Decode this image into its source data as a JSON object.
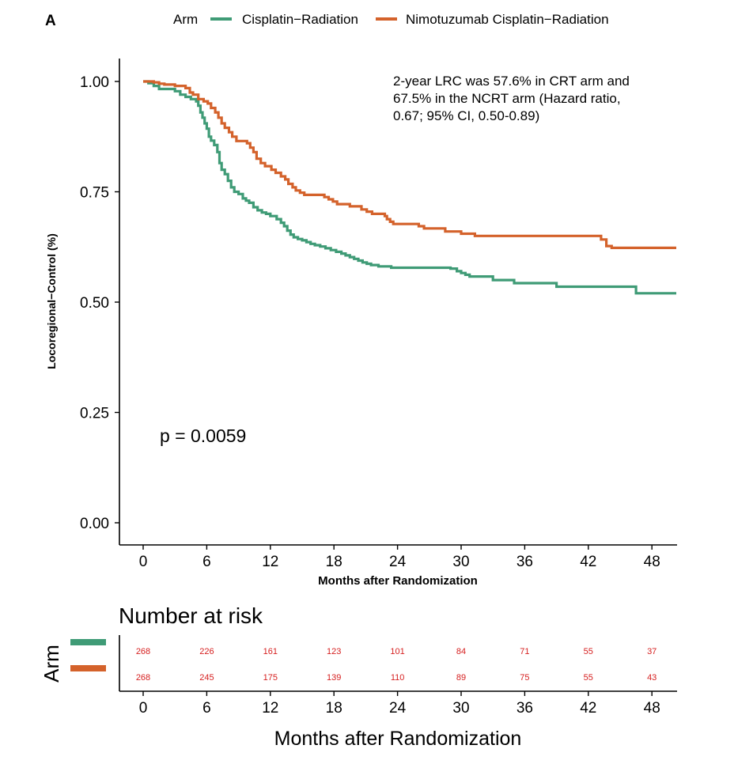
{
  "panel_label": "A",
  "chart_data": {
    "type": "line",
    "subtype": "kaplan-meier-step",
    "legend": {
      "title": "Arm",
      "placement": "top",
      "entries": [
        "Cisplatin−Radiation",
        "Nimotuzumab Cisplatin−Radiation"
      ]
    },
    "ylabel": "Locoregional−Control (%)",
    "xlabel": "Months after Randomization",
    "xlim": [
      -2,
      50
    ],
    "ylim": [
      -0.05,
      1.05
    ],
    "x_ticks": [
      0,
      6,
      12,
      18,
      24,
      30,
      36,
      42,
      48
    ],
    "y_ticks": [
      0.0,
      0.25,
      0.5,
      0.75,
      1.0
    ],
    "y_tick_labels": [
      "0.00",
      "0.25",
      "0.50",
      "0.75",
      "1.00"
    ],
    "pvalue_label": "p = 0.0059",
    "annotation_lines": [
      "2-year LRC was 57.6% in CRT arm and",
      "67.5% in the NCRT arm (Hazard ratio,",
      "0.67; 95% CI, 0.50-0.89)"
    ],
    "series": [
      {
        "name": "Cisplatin−Radiation",
        "color": "#3f9b76",
        "points": [
          [
            0,
            1.0
          ],
          [
            0.5,
            0.996
          ],
          [
            1,
            0.99
          ],
          [
            1.5,
            0.983
          ],
          [
            3,
            0.978
          ],
          [
            3.5,
            0.97
          ],
          [
            4,
            0.965
          ],
          [
            4.5,
            0.96
          ],
          [
            5,
            0.955
          ],
          [
            5.2,
            0.945
          ],
          [
            5.4,
            0.93
          ],
          [
            5.6,
            0.918
          ],
          [
            5.8,
            0.905
          ],
          [
            6,
            0.893
          ],
          [
            6.2,
            0.875
          ],
          [
            6.4,
            0.866
          ],
          [
            6.7,
            0.856
          ],
          [
            7,
            0.84
          ],
          [
            7.2,
            0.815
          ],
          [
            7.4,
            0.8
          ],
          [
            7.7,
            0.79
          ],
          [
            8,
            0.775
          ],
          [
            8.3,
            0.76
          ],
          [
            8.6,
            0.75
          ],
          [
            9,
            0.745
          ],
          [
            9.4,
            0.735
          ],
          [
            9.7,
            0.73
          ],
          [
            10,
            0.725
          ],
          [
            10.4,
            0.715
          ],
          [
            10.8,
            0.708
          ],
          [
            11.2,
            0.703
          ],
          [
            11.6,
            0.7
          ],
          [
            12,
            0.695
          ],
          [
            12.6,
            0.688
          ],
          [
            13,
            0.68
          ],
          [
            13.3,
            0.672
          ],
          [
            13.6,
            0.662
          ],
          [
            13.9,
            0.653
          ],
          [
            14.2,
            0.647
          ],
          [
            14.6,
            0.643
          ],
          [
            15,
            0.64
          ],
          [
            15.4,
            0.636
          ],
          [
            15.8,
            0.632
          ],
          [
            16.2,
            0.629
          ],
          [
            16.7,
            0.626
          ],
          [
            17.2,
            0.622
          ],
          [
            17.7,
            0.618
          ],
          [
            18.2,
            0.614
          ],
          [
            18.7,
            0.61
          ],
          [
            19.1,
            0.606
          ],
          [
            19.5,
            0.602
          ],
          [
            19.9,
            0.598
          ],
          [
            20.3,
            0.594
          ],
          [
            20.7,
            0.59
          ],
          [
            21.1,
            0.587
          ],
          [
            21.5,
            0.584
          ],
          [
            22.2,
            0.581
          ],
          [
            23.4,
            0.578
          ],
          [
            29,
            0.576
          ],
          [
            29.6,
            0.57
          ],
          [
            30,
            0.566
          ],
          [
            30.4,
            0.562
          ],
          [
            30.8,
            0.558
          ],
          [
            33,
            0.55
          ],
          [
            35,
            0.543
          ],
          [
            39,
            0.535
          ],
          [
            46.5,
            0.52
          ],
          [
            50.3,
            0.52
          ]
        ]
      },
      {
        "name": "Nimotuzumab Cisplatin−Radiation",
        "color": "#d4622b",
        "points": [
          [
            0,
            1.0
          ],
          [
            1,
            0.998
          ],
          [
            1.5,
            0.995
          ],
          [
            2,
            0.993
          ],
          [
            3,
            0.99
          ],
          [
            4,
            0.985
          ],
          [
            4.4,
            0.975
          ],
          [
            4.7,
            0.97
          ],
          [
            5.2,
            0.96
          ],
          [
            5.7,
            0.955
          ],
          [
            6.1,
            0.95
          ],
          [
            6.4,
            0.94
          ],
          [
            6.8,
            0.93
          ],
          [
            7.1,
            0.918
          ],
          [
            7.4,
            0.905
          ],
          [
            7.7,
            0.895
          ],
          [
            8.1,
            0.885
          ],
          [
            8.4,
            0.875
          ],
          [
            8.8,
            0.865
          ],
          [
            9.8,
            0.86
          ],
          [
            10.1,
            0.85
          ],
          [
            10.4,
            0.84
          ],
          [
            10.7,
            0.825
          ],
          [
            11.1,
            0.815
          ],
          [
            11.5,
            0.808
          ],
          [
            12.1,
            0.8
          ],
          [
            12.5,
            0.793
          ],
          [
            13,
            0.785
          ],
          [
            13.4,
            0.778
          ],
          [
            13.7,
            0.768
          ],
          [
            14.1,
            0.76
          ],
          [
            14.4,
            0.753
          ],
          [
            14.8,
            0.748
          ],
          [
            15.2,
            0.743
          ],
          [
            17.1,
            0.738
          ],
          [
            17.5,
            0.733
          ],
          [
            17.9,
            0.728
          ],
          [
            18.3,
            0.722
          ],
          [
            19.5,
            0.717
          ],
          [
            20.6,
            0.71
          ],
          [
            21.1,
            0.705
          ],
          [
            21.6,
            0.7
          ],
          [
            22.8,
            0.695
          ],
          [
            23,
            0.688
          ],
          [
            23.3,
            0.682
          ],
          [
            23.6,
            0.677
          ],
          [
            26,
            0.672
          ],
          [
            26.5,
            0.667
          ],
          [
            28.5,
            0.66
          ],
          [
            30,
            0.655
          ],
          [
            31.3,
            0.65
          ],
          [
            43.2,
            0.642
          ],
          [
            43.7,
            0.627
          ],
          [
            44.2,
            0.623
          ],
          [
            50.3,
            0.623
          ]
        ]
      }
    ],
    "risk_table": {
      "title": "Number at risk",
      "ylabel": "Arm",
      "xlabel": "Months after Randomization",
      "times": [
        0,
        6,
        12,
        18,
        24,
        30,
        36,
        42,
        48
      ],
      "rows": [
        {
          "name": "Cisplatin−Radiation",
          "color": "#3f9b76",
          "values": [
            268,
            226,
            161,
            123,
            101,
            84,
            71,
            55,
            37
          ]
        },
        {
          "name": "Nimotuzumab Cisplatin−Radiation",
          "color": "#d4622b",
          "values": [
            268,
            245,
            175,
            139,
            110,
            89,
            75,
            55,
            43
          ]
        }
      ],
      "value_color": "#d62020"
    }
  }
}
